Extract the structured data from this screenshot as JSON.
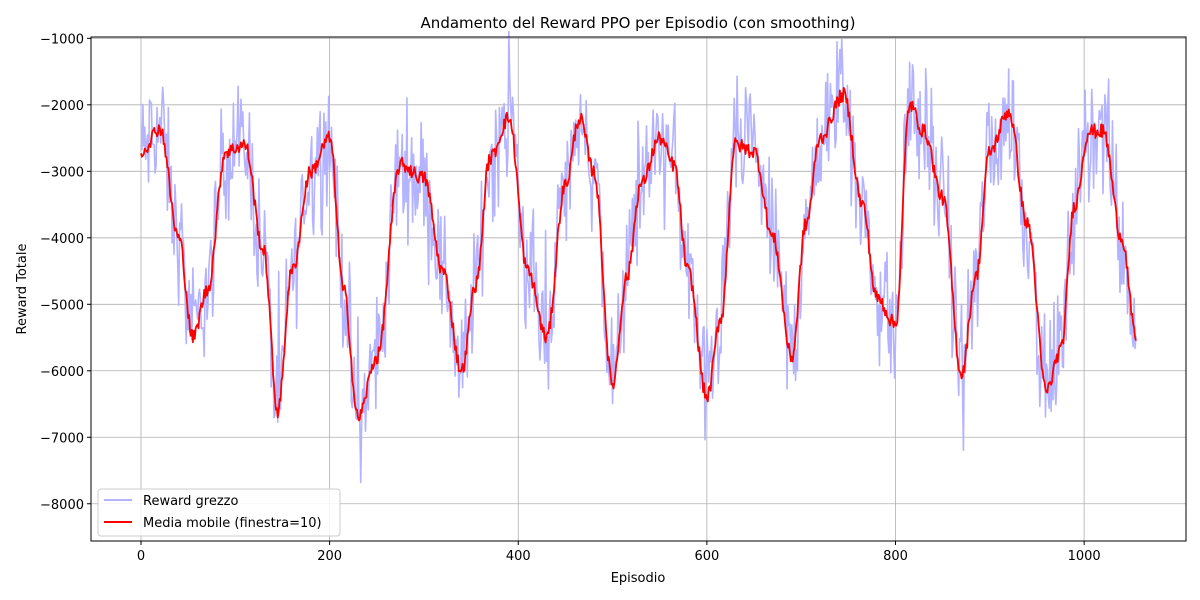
{
  "chart_data": {
    "type": "line",
    "title": "Andamento del Reward PPO per Episodio (con smoothing)",
    "xlabel": "Episodio",
    "ylabel": "Reward Totale",
    "xlim": [
      -53,
      1108
    ],
    "ylim": [
      -8560,
      -980
    ],
    "x_ticks": [
      0,
      200,
      400,
      600,
      800,
      1000
    ],
    "y_ticks": [
      -8000,
      -7000,
      -6000,
      -5000,
      -4000,
      -3000,
      -2000,
      -1000
    ],
    "grid": true,
    "legend_position": "lower-left",
    "x_range": [
      0,
      1055
    ],
    "series": [
      {
        "name": "Reward grezzo",
        "color": "#b3b3ff",
        "note_style": "raw",
        "x": [
          0,
          20,
          40,
          55,
          70,
          90,
          110,
          130,
          145,
          160,
          180,
          200,
          215,
          230,
          250,
          275,
          300,
          320,
          340,
          355,
          370,
          390,
          410,
          430,
          450,
          465,
          480,
          500,
          515,
          530,
          550,
          565,
          580,
          600,
          615,
          630,
          650,
          670,
          690,
          705,
          720,
          745,
          765,
          780,
          800,
          815,
          830,
          850,
          870,
          885,
          900,
          920,
          940,
          960,
          975,
          990,
          1005,
          1020,
          1040,
          1055
        ],
        "values": [
          -2700,
          -2350,
          -4000,
          -5500,
          -4800,
          -2700,
          -2600,
          -4200,
          -6600,
          -4500,
          -3000,
          -2500,
          -4800,
          -6700,
          -5800,
          -2900,
          -3100,
          -4500,
          -6000,
          -4700,
          -2800,
          -2200,
          -4500,
          -5500,
          -3200,
          -2200,
          -3000,
          -6200,
          -4600,
          -3200,
          -2500,
          -2900,
          -4500,
          -6400,
          -5200,
          -2600,
          -2700,
          -4000,
          -5800,
          -3800,
          -2500,
          -1850,
          -3500,
          -4900,
          -5300,
          -2000,
          -2400,
          -3400,
          -6050,
          -4600,
          -2700,
          -2100,
          -3800,
          -6300,
          -5700,
          -3500,
          -2400,
          -2400,
          -4000,
          -5500
        ]
      },
      {
        "name": "Media mobile (finestra=10)",
        "color": "#ff0000",
        "note_style": "smooth",
        "x": [
          0,
          20,
          40,
          55,
          70,
          90,
          110,
          130,
          145,
          160,
          180,
          200,
          215,
          230,
          250,
          275,
          300,
          320,
          340,
          355,
          370,
          390,
          410,
          430,
          450,
          465,
          480,
          500,
          515,
          530,
          550,
          565,
          580,
          600,
          615,
          630,
          650,
          670,
          690,
          705,
          720,
          745,
          765,
          780,
          800,
          815,
          830,
          850,
          870,
          885,
          900,
          920,
          940,
          960,
          975,
          990,
          1005,
          1020,
          1040,
          1055
        ],
        "values": [
          -2700,
          -2350,
          -4000,
          -5500,
          -4800,
          -2700,
          -2600,
          -4200,
          -6600,
          -4500,
          -3000,
          -2500,
          -4800,
          -6700,
          -5800,
          -2900,
          -3100,
          -4500,
          -6000,
          -4700,
          -2800,
          -2200,
          -4500,
          -5500,
          -3200,
          -2200,
          -3000,
          -6200,
          -4600,
          -3200,
          -2500,
          -2900,
          -4500,
          -6400,
          -5200,
          -2600,
          -2700,
          -4000,
          -5800,
          -3800,
          -2500,
          -1850,
          -3500,
          -4900,
          -5300,
          -2000,
          -2400,
          -3400,
          -6050,
          -4600,
          -2700,
          -2100,
          -3800,
          -6300,
          -5700,
          -3500,
          -2400,
          -2400,
          -4000,
          -5500
        ]
      }
    ]
  }
}
